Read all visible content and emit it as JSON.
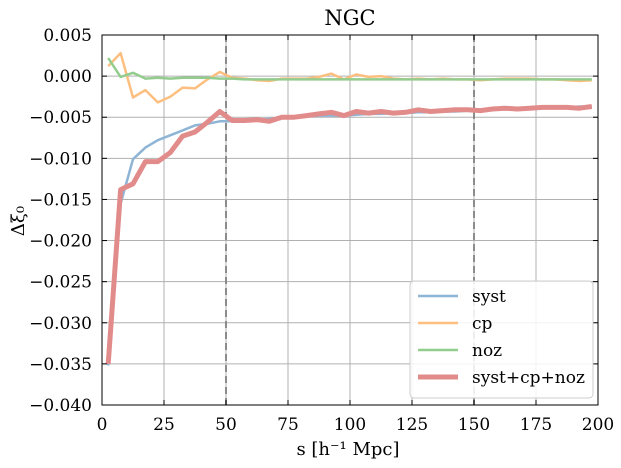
{
  "chart_data": {
    "type": "line",
    "title": "NGC",
    "xlabel": "s [h⁻¹ Mpc]",
    "ylabel": "Δξ₀",
    "xlim": [
      0,
      200
    ],
    "ylim": [
      -0.04,
      0.005
    ],
    "grid": true,
    "legend_position": "bottom-right",
    "xticks": [
      0,
      25,
      50,
      75,
      100,
      125,
      150,
      175,
      200
    ],
    "xtick_labels": [
      "0",
      "25",
      "50",
      "75",
      "100",
      "125",
      "150",
      "175",
      "200"
    ],
    "yticks": [
      0.005,
      0.0,
      -0.005,
      -0.01,
      -0.015,
      -0.02,
      -0.025,
      -0.03,
      -0.035,
      -0.04
    ],
    "ytick_labels": [
      "0.005",
      "0.000",
      "−0.005",
      "−0.010",
      "−0.015",
      "−0.020",
      "−0.025",
      "−0.030",
      "−0.035",
      "−0.040"
    ],
    "vlines": [
      50,
      150
    ],
    "x": [
      2.5,
      7.5,
      12.5,
      17.5,
      22.5,
      27.5,
      32.5,
      37.5,
      42.5,
      47.5,
      52.5,
      57.5,
      62.5,
      67.5,
      72.5,
      77.5,
      82.5,
      87.5,
      92.5,
      97.5,
      102.5,
      107.5,
      112.5,
      117.5,
      122.5,
      127.5,
      132.5,
      137.5,
      142.5,
      147.5,
      152.5,
      157.5,
      162.5,
      167.5,
      172.5,
      177.5,
      182.5,
      187.5,
      192.5,
      197.5
    ],
    "series": [
      {
        "name": "syst",
        "color": "#8eb4d6",
        "width": 2.5,
        "values": [
          -0.0352,
          -0.0155,
          -0.0101,
          -0.0087,
          -0.0078,
          -0.0072,
          -0.0066,
          -0.006,
          -0.0058,
          -0.0055,
          -0.0055,
          -0.0053,
          -0.0053,
          -0.0052,
          -0.0051,
          -0.005,
          -0.0049,
          -0.0048,
          -0.0048,
          -0.0048,
          -0.0047,
          -0.0046,
          -0.0046,
          -0.0045,
          -0.0045,
          -0.0044,
          -0.0044,
          -0.0043,
          -0.0043,
          -0.0042,
          -0.0042,
          -0.0041,
          -0.004,
          -0.004,
          -0.0039,
          -0.0039,
          -0.0038,
          -0.0038,
          -0.0037,
          -0.0037
        ]
      },
      {
        "name": "cp",
        "color": "#fdbf80",
        "width": 2.5,
        "values": [
          0.0012,
          0.0028,
          -0.0026,
          -0.0017,
          -0.0032,
          -0.0025,
          -0.0014,
          -0.0015,
          -0.0004,
          0.0005,
          -0.0002,
          -0.0003,
          -0.0005,
          -0.0006,
          -0.0003,
          -0.0003,
          -0.0003,
          -0.0001,
          0.0003,
          -0.0004,
          0.0002,
          -0.0001,
          0.0,
          -0.0003,
          -0.0004,
          -0.0003,
          -0.0004,
          -0.0003,
          -0.0004,
          -0.0004,
          -0.0005,
          -0.0004,
          -0.0003,
          -0.0003,
          -0.0003,
          -0.0004,
          -0.0004,
          -0.0005,
          -0.0006,
          -0.0005
        ]
      },
      {
        "name": "noz",
        "color": "#92cd8e",
        "width": 2.5,
        "values": [
          0.0022,
          -0.0001,
          0.0004,
          -0.0003,
          -0.0002,
          -0.0003,
          -0.0002,
          -0.0002,
          -0.0002,
          -0.0003,
          -0.0003,
          -0.0004,
          -0.0004,
          -0.0004,
          -0.0004,
          -0.0004,
          -0.0004,
          -0.0004,
          -0.0004,
          -0.0004,
          -0.0004,
          -0.0004,
          -0.0004,
          -0.0004,
          -0.0004,
          -0.0004,
          -0.0004,
          -0.0004,
          -0.0004,
          -0.0004,
          -0.0004,
          -0.0004,
          -0.0004,
          -0.0004,
          -0.0004,
          -0.0004,
          -0.0004,
          -0.0004,
          -0.0004,
          -0.0004
        ]
      },
      {
        "name": "syst+cp+noz",
        "color": "#e28b8b",
        "width": 5,
        "values": [
          -0.035,
          -0.0138,
          -0.0131,
          -0.0104,
          -0.0104,
          -0.0093,
          -0.0073,
          -0.0068,
          -0.0056,
          -0.0043,
          -0.0054,
          -0.0054,
          -0.0053,
          -0.0055,
          -0.005,
          -0.005,
          -0.0048,
          -0.0046,
          -0.0044,
          -0.0048,
          -0.0043,
          -0.0045,
          -0.0043,
          -0.0045,
          -0.0044,
          -0.0041,
          -0.0043,
          -0.0042,
          -0.0041,
          -0.0041,
          -0.0042,
          -0.004,
          -0.0039,
          -0.004,
          -0.0039,
          -0.0038,
          -0.0038,
          -0.0038,
          -0.0039,
          -0.0037
        ]
      }
    ]
  }
}
